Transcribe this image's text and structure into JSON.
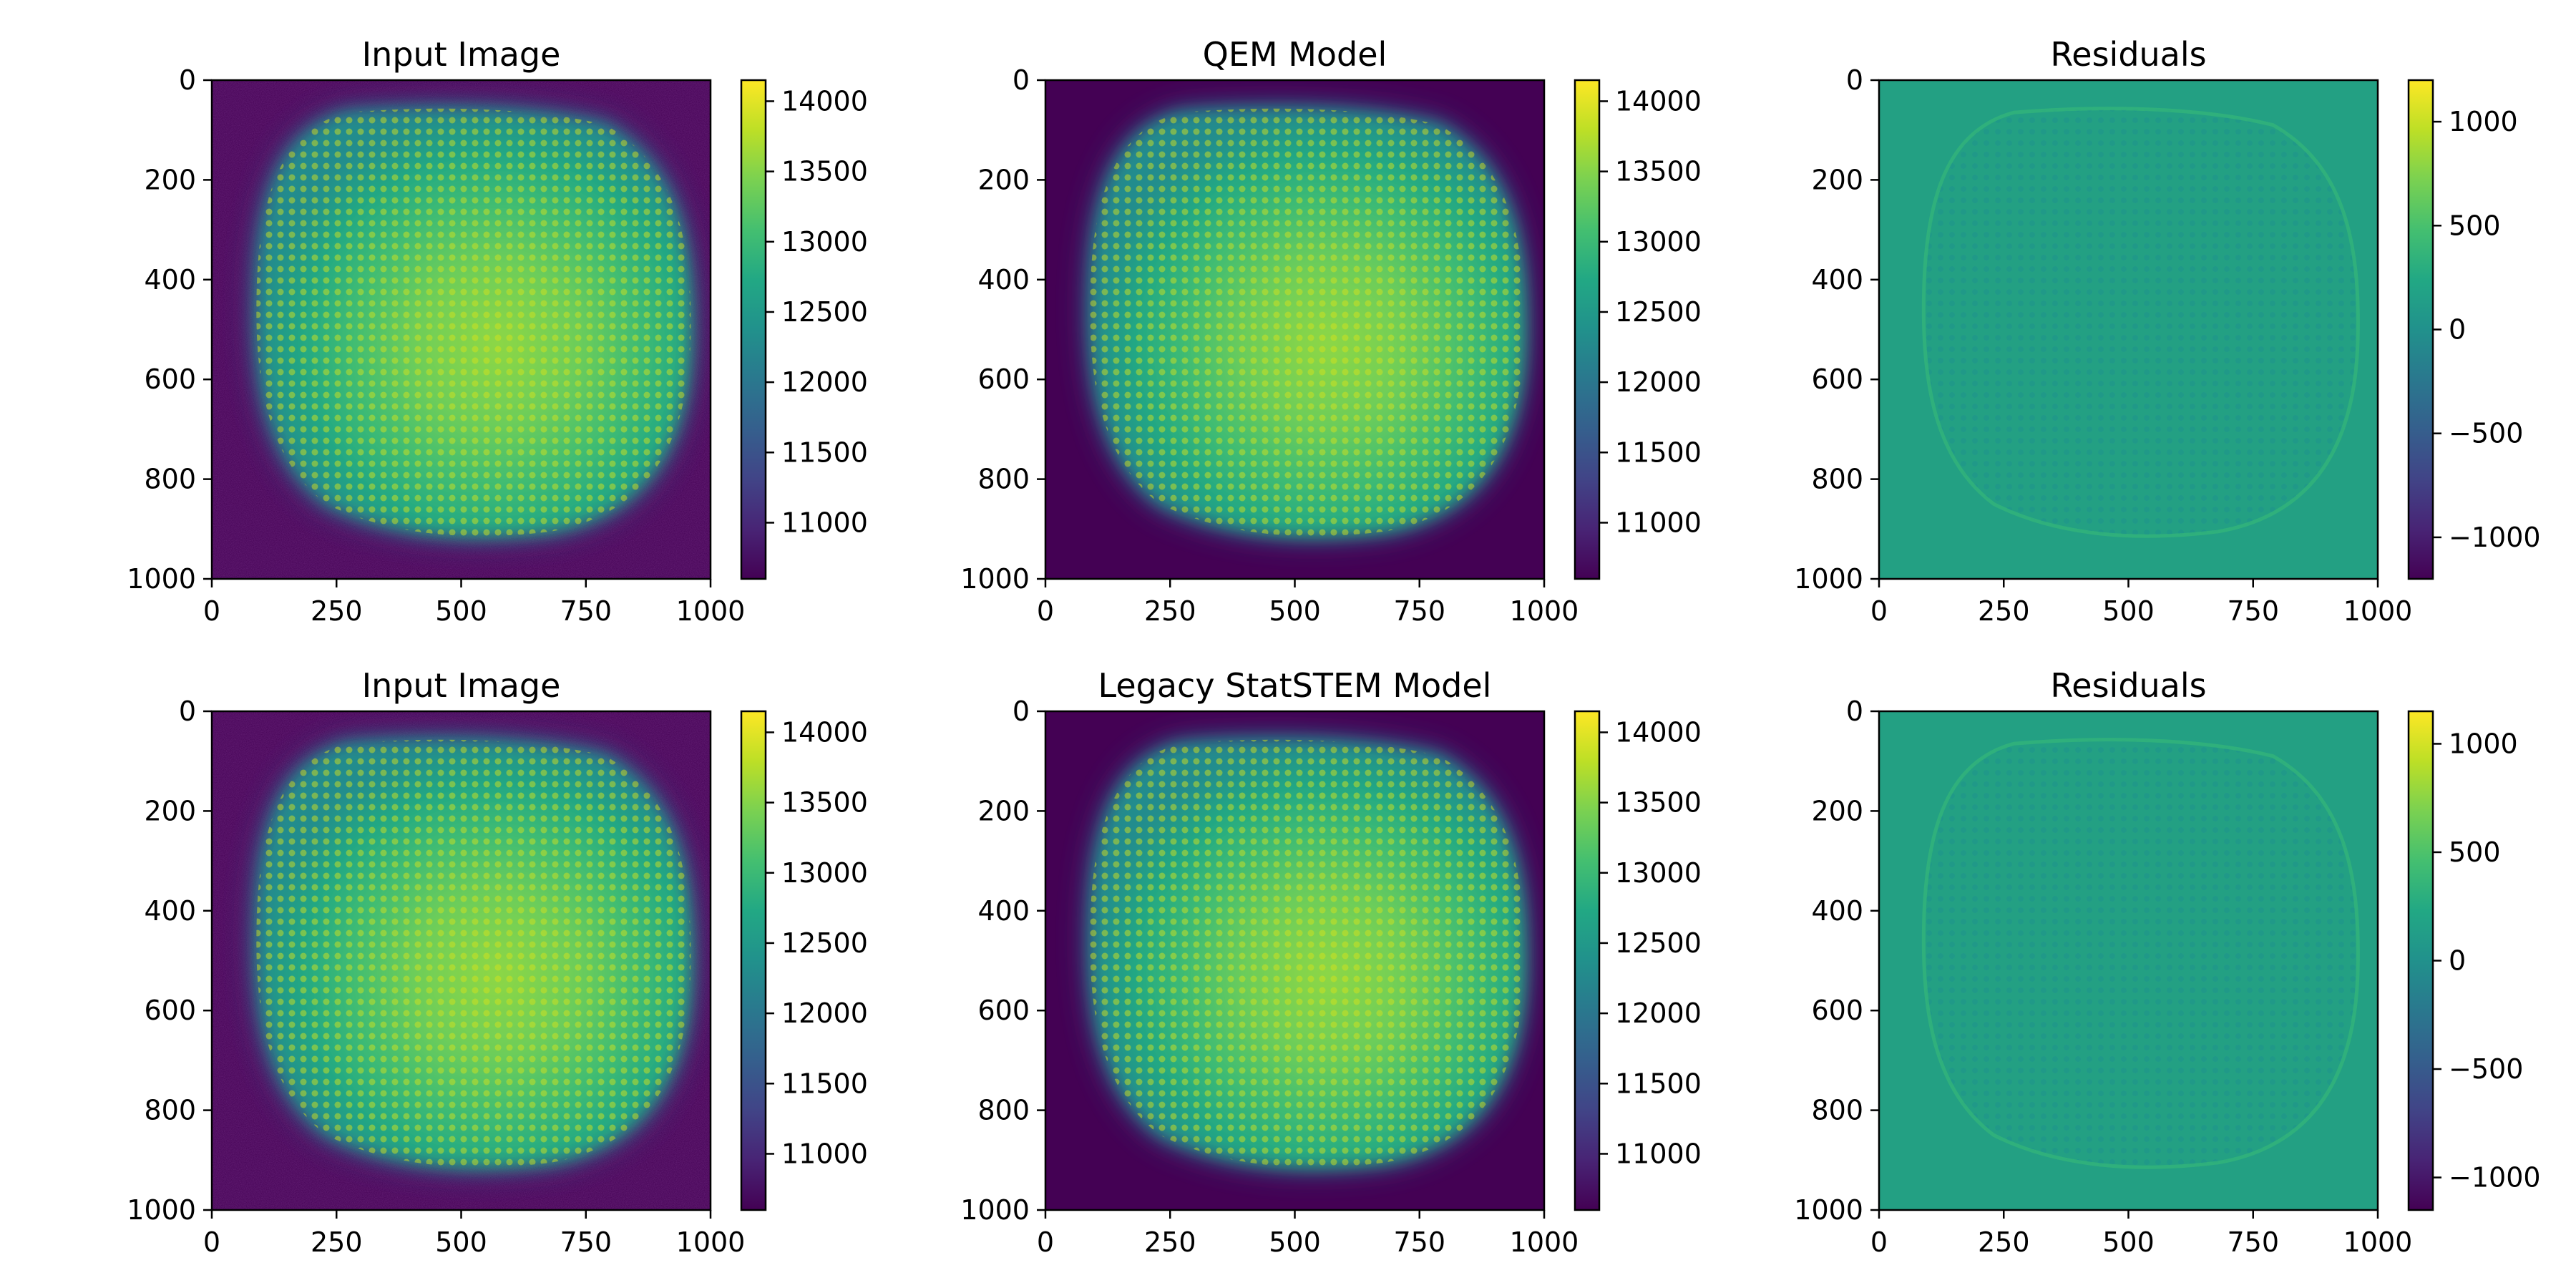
{
  "chart_data": [
    {
      "type": "heatmap",
      "title": "Input Image",
      "variant": "noisy",
      "xlim": [
        0,
        1000
      ],
      "ylim": [
        1000,
        0
      ],
      "xticks": [
        0,
        250,
        500,
        750,
        1000
      ],
      "yticks": [
        0,
        200,
        400,
        600,
        800,
        1000
      ],
      "colormap": "viridis",
      "colorbar": {
        "range": [
          10600,
          14150
        ],
        "ticks": [
          11000,
          11500,
          12000,
          12500,
          13000,
          13500,
          14000
        ],
        "tick_labels": [
          "11000",
          "11500",
          "12000",
          "12500",
          "13000",
          "13500",
          "14000"
        ]
      }
    },
    {
      "type": "heatmap",
      "title": "QEM Model",
      "variant": "model",
      "xlim": [
        0,
        1000
      ],
      "ylim": [
        1000,
        0
      ],
      "xticks": [
        0,
        250,
        500,
        750,
        1000
      ],
      "yticks": [
        0,
        200,
        400,
        600,
        800,
        1000
      ],
      "colormap": "viridis",
      "colorbar": {
        "range": [
          10600,
          14150
        ],
        "ticks": [
          11000,
          11500,
          12000,
          12500,
          13000,
          13500,
          14000
        ],
        "tick_labels": [
          "11000",
          "11500",
          "12000",
          "12500",
          "13000",
          "13500",
          "14000"
        ]
      }
    },
    {
      "type": "heatmap",
      "title": "Residuals",
      "variant": "residual",
      "xlim": [
        0,
        1000
      ],
      "ylim": [
        1000,
        0
      ],
      "xticks": [
        0,
        250,
        500,
        750,
        1000
      ],
      "yticks": [
        0,
        200,
        400,
        600,
        800,
        1000
      ],
      "colormap": "viridis",
      "colorbar": {
        "range": [
          -1200,
          1200
        ],
        "ticks": [
          -1000,
          -500,
          0,
          500,
          1000
        ],
        "tick_labels": [
          "−1000",
          "−500",
          "0",
          "500",
          "1000"
        ]
      }
    },
    {
      "type": "heatmap",
      "title": "Input Image",
      "variant": "noisy",
      "xlim": [
        0,
        1000
      ],
      "ylim": [
        1000,
        0
      ],
      "xticks": [
        0,
        250,
        500,
        750,
        1000
      ],
      "yticks": [
        0,
        200,
        400,
        600,
        800,
        1000
      ],
      "colormap": "viridis",
      "colorbar": {
        "range": [
          10600,
          14150
        ],
        "ticks": [
          11000,
          11500,
          12000,
          12500,
          13000,
          13500,
          14000
        ],
        "tick_labels": [
          "11000",
          "11500",
          "12000",
          "12500",
          "13000",
          "13500",
          "14000"
        ]
      }
    },
    {
      "type": "heatmap",
      "title": "Legacy StatSTEM Model",
      "variant": "model",
      "xlim": [
        0,
        1000
      ],
      "ylim": [
        1000,
        0
      ],
      "xticks": [
        0,
        250,
        500,
        750,
        1000
      ],
      "yticks": [
        0,
        200,
        400,
        600,
        800,
        1000
      ],
      "colormap": "viridis",
      "colorbar": {
        "range": [
          10600,
          14150
        ],
        "ticks": [
          11000,
          11500,
          12000,
          12500,
          13000,
          13500,
          14000
        ],
        "tick_labels": [
          "11000",
          "11500",
          "12000",
          "12500",
          "13000",
          "13500",
          "14000"
        ]
      }
    },
    {
      "type": "heatmap",
      "title": "Residuals",
      "variant": "residual",
      "xlim": [
        0,
        1000
      ],
      "ylim": [
        1000,
        0
      ],
      "xticks": [
        0,
        250,
        500,
        750,
        1000
      ],
      "yticks": [
        0,
        200,
        400,
        600,
        800,
        1000
      ],
      "colormap": "viridis",
      "colorbar": {
        "range": [
          -1150,
          1150
        ],
        "ticks": [
          -1000,
          -500,
          0,
          500,
          1000
        ],
        "tick_labels": [
          "−1000",
          "−500",
          "0",
          "500",
          "1000"
        ]
      }
    }
  ]
}
